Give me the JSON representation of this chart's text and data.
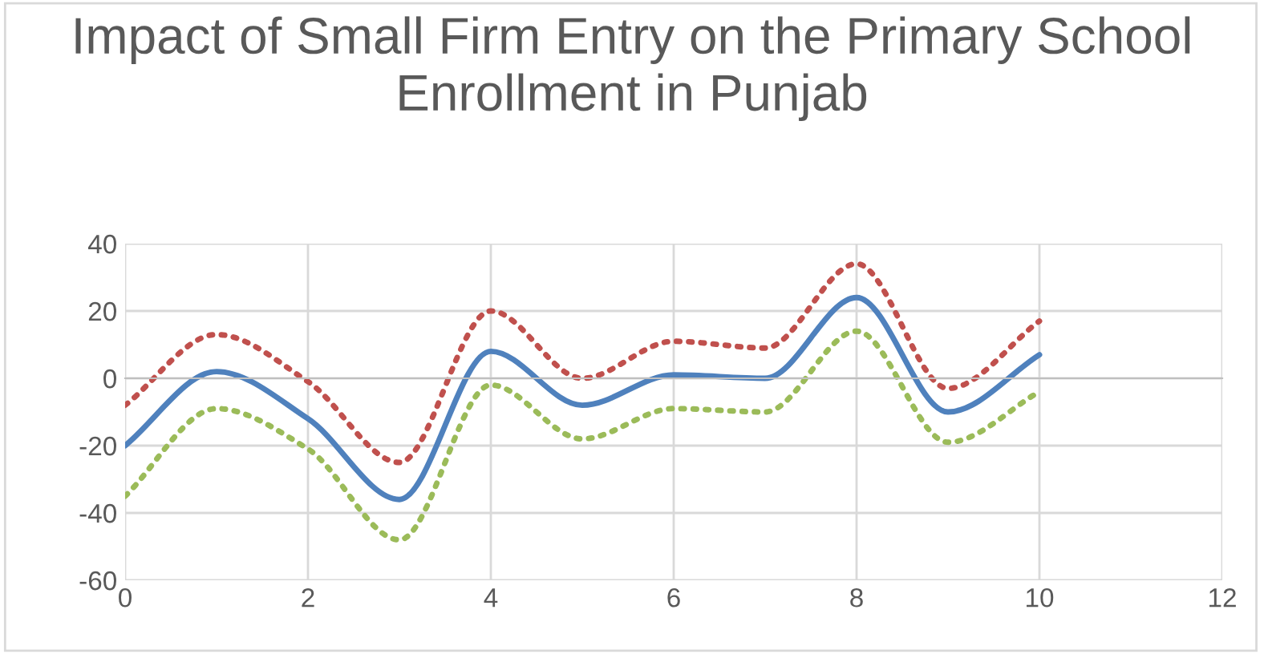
{
  "chart_data": {
    "type": "line",
    "title": "Impact of Small Firm Entry on the Primary School Enrollment in Punjab",
    "x": [
      0,
      1,
      2,
      3,
      4,
      5,
      6,
      7,
      8,
      9,
      10
    ],
    "series": [
      {
        "color": "#4f81bd",
        "line_style": "solid",
        "values": [
          -20,
          2,
          -12,
          -36,
          8,
          -8,
          1,
          0,
          24,
          -10,
          7
        ]
      },
      {
        "color": "#c0504d",
        "line_style": "dotted",
        "values": [
          -8,
          13,
          -1,
          -25,
          20,
          0,
          11,
          9,
          34,
          -3,
          17
        ]
      },
      {
        "color": "#9bbb59",
        "line_style": "dotted",
        "values": [
          -35,
          -9,
          -21,
          -48,
          -2,
          -18,
          -9,
          -10,
          14,
          -19,
          -4
        ]
      }
    ],
    "xlim": [
      0,
      12
    ],
    "xticks": [
      0,
      2,
      4,
      6,
      8,
      10,
      12
    ],
    "ylim": [
      -60,
      40
    ],
    "yticks": [
      -60,
      -40,
      -20,
      0,
      20,
      40
    ],
    "grid": true,
    "marker": "none"
  }
}
